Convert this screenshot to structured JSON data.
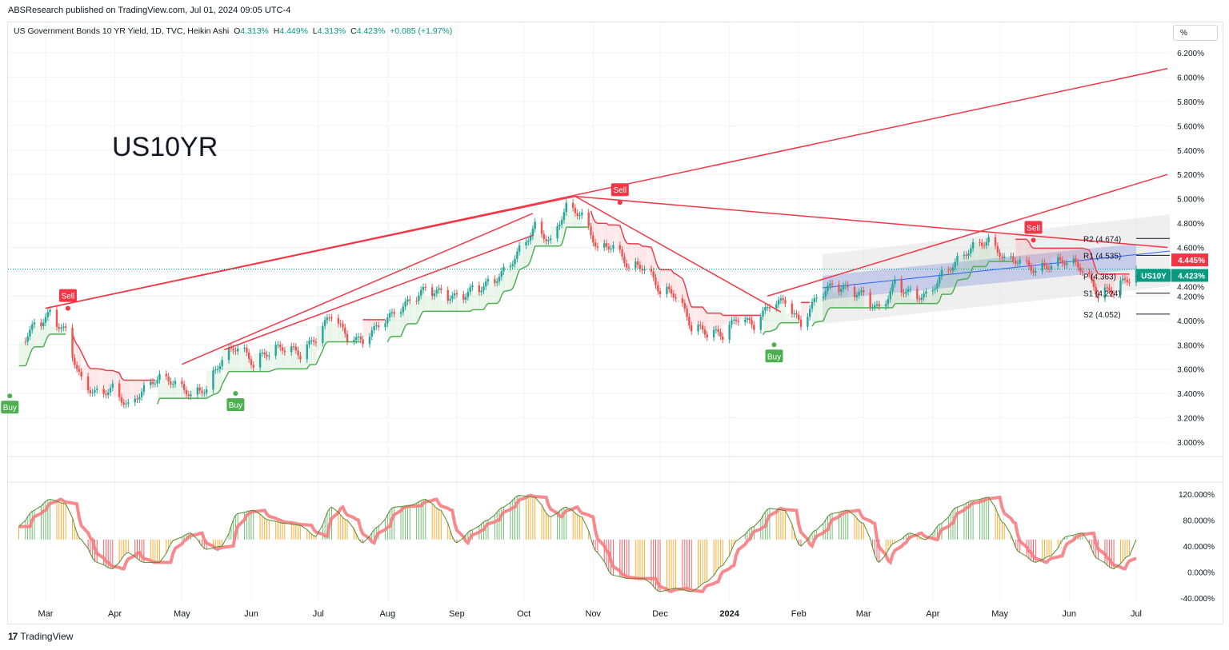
{
  "header": {
    "published": "ABSResearch published on TradingView.com, Jul 01, 2024 09:05 UTC-4"
  },
  "legend": {
    "symbol": "US Government Bonds 10 YR Yield, 1D, TVC, Heikin Ashi",
    "o_label": "O",
    "o": "4.313%",
    "h_label": "H",
    "h": "4.449%",
    "l_label": "L",
    "l": "4.313%",
    "c_label": "C",
    "c": "4.423%",
    "change": "+0.085 (+1.97%)"
  },
  "watermark_symbol": "US10YR",
  "scale_button": "%",
  "footer": {
    "brand": "TradingView",
    "logo": "17"
  },
  "colors": {
    "up": "#26a69a",
    "down": "#ef5350",
    "trendline": "#f23645",
    "supertrend_up": "#4caf50",
    "supertrend_down": "#f23645",
    "price_tag": "#089981",
    "prev_tag": "#f23645"
  },
  "chart_data": [
    {
      "type": "candlestick",
      "style": "Heikin Ashi",
      "ylim": [
        2.9,
        6.3
      ],
      "y_ticks": [
        "6.200%",
        "6.000%",
        "5.800%",
        "5.600%",
        "5.400%",
        "5.200%",
        "5.000%",
        "4.800%",
        "4.600%",
        "4.400%",
        "4.200%",
        "4.000%",
        "3.800%",
        "3.600%",
        "3.400%",
        "3.200%",
        "3.000%"
      ],
      "x_ticks": [
        {
          "label": "Mar",
          "date": "2023-03-01"
        },
        {
          "label": "Apr",
          "date": "2023-04-01"
        },
        {
          "label": "May",
          "date": "2023-05-01"
        },
        {
          "label": "Jun",
          "date": "2023-06-01"
        },
        {
          "label": "Jul",
          "date": "2023-07-01"
        },
        {
          "label": "Aug",
          "date": "2023-08-01"
        },
        {
          "label": "Sep",
          "date": "2023-09-01"
        },
        {
          "label": "Oct",
          "date": "2023-10-01"
        },
        {
          "label": "Nov",
          "date": "2023-11-01"
        },
        {
          "label": "Dec",
          "date": "2023-12-01"
        },
        {
          "label": "2024",
          "date": "2024-01-01"
        },
        {
          "label": "Feb",
          "date": "2024-02-01"
        },
        {
          "label": "Mar",
          "date": "2024-03-01"
        },
        {
          "label": "Apr",
          "date": "2024-04-01"
        },
        {
          "label": "May",
          "date": "2024-05-01"
        },
        {
          "label": "Jun",
          "date": "2024-06-01"
        },
        {
          "label": "Jul",
          "date": "2024-07-01"
        }
      ],
      "weekly_close": [
        [
          "2023-02-17",
          3.8
        ],
        [
          "2023-02-24",
          3.95
        ],
        [
          "2023-03-03",
          4.05
        ],
        [
          "2023-03-10",
          3.9
        ],
        [
          "2023-03-17",
          3.5
        ],
        [
          "2023-03-24",
          3.4
        ],
        [
          "2023-03-31",
          3.45
        ],
        [
          "2023-04-07",
          3.3
        ],
        [
          "2023-04-14",
          3.45
        ],
        [
          "2023-04-21",
          3.55
        ],
        [
          "2023-04-28",
          3.5
        ],
        [
          "2023-05-05",
          3.4
        ],
        [
          "2023-05-12",
          3.45
        ],
        [
          "2023-05-19",
          3.7
        ],
        [
          "2023-05-26",
          3.8
        ],
        [
          "2023-06-02",
          3.65
        ],
        [
          "2023-06-09",
          3.75
        ],
        [
          "2023-06-16",
          3.78
        ],
        [
          "2023-06-23",
          3.72
        ],
        [
          "2023-06-30",
          3.85
        ],
        [
          "2023-07-07",
          4.05
        ],
        [
          "2023-07-14",
          3.85
        ],
        [
          "2023-07-21",
          3.82
        ],
        [
          "2023-07-28",
          3.95
        ],
        [
          "2023-08-04",
          4.05
        ],
        [
          "2023-08-11",
          4.15
        ],
        [
          "2023-08-18",
          4.25
        ],
        [
          "2023-08-25",
          4.22
        ],
        [
          "2023-09-01",
          4.18
        ],
        [
          "2023-09-08",
          4.25
        ],
        [
          "2023-09-15",
          4.3
        ],
        [
          "2023-09-22",
          4.4
        ],
        [
          "2023-09-29",
          4.58
        ],
        [
          "2023-10-06",
          4.78
        ],
        [
          "2023-10-13",
          4.65
        ],
        [
          "2023-10-20",
          4.95
        ],
        [
          "2023-10-27",
          4.88
        ],
        [
          "2023-11-03",
          4.6
        ],
        [
          "2023-11-10",
          4.63
        ],
        [
          "2023-11-17",
          4.45
        ],
        [
          "2023-11-24",
          4.45
        ],
        [
          "2023-12-01",
          4.25
        ],
        [
          "2023-12-08",
          4.22
        ],
        [
          "2023-12-15",
          3.95
        ],
        [
          "2023-12-22",
          3.9
        ],
        [
          "2023-12-29",
          3.88
        ],
        [
          "2024-01-05",
          4.02
        ],
        [
          "2024-01-12",
          3.95
        ],
        [
          "2024-01-19",
          4.12
        ],
        [
          "2024-01-26",
          4.15
        ],
        [
          "2024-02-02",
          3.95
        ],
        [
          "2024-02-09",
          4.18
        ],
        [
          "2024-02-16",
          4.28
        ],
        [
          "2024-02-23",
          4.25
        ],
        [
          "2024-03-01",
          4.2
        ],
        [
          "2024-03-08",
          4.08
        ],
        [
          "2024-03-15",
          4.3
        ],
        [
          "2024-03-22",
          4.22
        ],
        [
          "2024-03-29",
          4.2
        ],
        [
          "2024-04-05",
          4.38
        ],
        [
          "2024-04-12",
          4.5
        ],
        [
          "2024-04-19",
          4.62
        ],
        [
          "2024-04-26",
          4.67
        ],
        [
          "2024-05-03",
          4.52
        ],
        [
          "2024-05-10",
          4.5
        ],
        [
          "2024-05-17",
          4.42
        ],
        [
          "2024-05-24",
          4.47
        ],
        [
          "2024-05-31",
          4.5
        ],
        [
          "2024-06-07",
          4.43
        ],
        [
          "2024-06-14",
          4.22
        ],
        [
          "2024-06-21",
          4.25
        ],
        [
          "2024-06-28",
          4.35
        ],
        [
          "2024-07-01",
          4.42
        ]
      ],
      "trendlines": [
        [
          [
            "2023-03-01",
            4.1
          ],
          [
            "2024-07-15",
            6.07
          ]
        ],
        [
          [
            "2023-03-01",
            4.1
          ],
          [
            "2023-10-24",
            5.02
          ]
        ],
        [
          [
            "2023-05-01",
            3.64
          ],
          [
            "2023-10-05",
            4.88
          ]
        ],
        [
          [
            "2023-05-20",
            3.76
          ],
          [
            "2023-10-05",
            4.7
          ]
        ],
        [
          [
            "2023-10-24",
            5.02
          ],
          [
            "2024-07-15",
            4.6
          ]
        ],
        [
          [
            "2023-10-24",
            5.02
          ],
          [
            "2024-01-24",
            4.07
          ]
        ],
        [
          [
            "2024-01-18",
            4.2
          ],
          [
            "2024-07-15",
            5.2
          ]
        ]
      ],
      "signals": [
        {
          "label": "Buy",
          "date": "2023-02-13",
          "value": 3.38
        },
        {
          "label": "Sell",
          "date": "2023-03-11",
          "value": 4.1
        },
        {
          "label": "Buy",
          "date": "2023-05-25",
          "value": 3.4
        },
        {
          "label": "Sell",
          "date": "2023-11-13",
          "value": 4.97
        },
        {
          "label": "Buy",
          "date": "2024-01-21",
          "value": 3.8
        },
        {
          "label": "Sell",
          "date": "2024-05-16",
          "value": 4.66
        }
      ],
      "pivots": [
        {
          "label": "R2 (4.674)",
          "value": 4.674
        },
        {
          "label": "R1 (4.535)",
          "value": 4.535
        },
        {
          "label": "P (4.363)",
          "value": 4.363
        },
        {
          "label": "S1 (4.224)",
          "value": 4.224
        },
        {
          "label": "S2 (4.052)",
          "value": 4.052
        }
      ],
      "price_tags": [
        {
          "label": "",
          "value": 4.445,
          "text": "4.445%"
        },
        {
          "label": "US10Y",
          "value": 4.423,
          "text": "4.423%"
        }
      ]
    },
    {
      "type": "histogram",
      "ylim": [
        -45,
        125
      ],
      "baseline": 50,
      "y_ticks": [
        "120.000%",
        "80.000%",
        "40.000%",
        "0.000%",
        "-40.000%"
      ],
      "weekly_value": [
        [
          "2023-02-17",
          70
        ],
        [
          "2023-02-24",
          95
        ],
        [
          "2023-03-03",
          112
        ],
        [
          "2023-03-10",
          105
        ],
        [
          "2023-03-17",
          50
        ],
        [
          "2023-03-24",
          15
        ],
        [
          "2023-03-31",
          5
        ],
        [
          "2023-04-07",
          30
        ],
        [
          "2023-04-14",
          15
        ],
        [
          "2023-04-21",
          15
        ],
        [
          "2023-04-28",
          50
        ],
        [
          "2023-05-05",
          60
        ],
        [
          "2023-05-12",
          35
        ],
        [
          "2023-05-19",
          40
        ],
        [
          "2023-05-26",
          90
        ],
        [
          "2023-06-02",
          95
        ],
        [
          "2023-06-09",
          80
        ],
        [
          "2023-06-16",
          75
        ],
        [
          "2023-06-23",
          72
        ],
        [
          "2023-06-30",
          55
        ],
        [
          "2023-07-07",
          100
        ],
        [
          "2023-07-14",
          80
        ],
        [
          "2023-07-21",
          45
        ],
        [
          "2023-07-28",
          70
        ],
        [
          "2023-08-04",
          100
        ],
        [
          "2023-08-11",
          102
        ],
        [
          "2023-08-18",
          112
        ],
        [
          "2023-08-25",
          95
        ],
        [
          "2023-09-01",
          45
        ],
        [
          "2023-09-08",
          65
        ],
        [
          "2023-09-15",
          80
        ],
        [
          "2023-09-22",
          100
        ],
        [
          "2023-09-29",
          118
        ],
        [
          "2023-10-06",
          115
        ],
        [
          "2023-10-13",
          85
        ],
        [
          "2023-10-20",
          100
        ],
        [
          "2023-10-27",
          85
        ],
        [
          "2023-11-03",
          30
        ],
        [
          "2023-11-10",
          -5
        ],
        [
          "2023-11-17",
          -10
        ],
        [
          "2023-11-24",
          -10
        ],
        [
          "2023-12-01",
          -30
        ],
        [
          "2023-12-08",
          -25
        ],
        [
          "2023-12-15",
          -30
        ],
        [
          "2023-12-22",
          -15
        ],
        [
          "2023-12-29",
          10
        ],
        [
          "2024-01-05",
          50
        ],
        [
          "2024-01-12",
          70
        ],
        [
          "2024-01-19",
          98
        ],
        [
          "2024-01-26",
          95
        ],
        [
          "2024-02-02",
          40
        ],
        [
          "2024-02-09",
          65
        ],
        [
          "2024-02-16",
          90
        ],
        [
          "2024-02-23",
          95
        ],
        [
          "2024-03-01",
          75
        ],
        [
          "2024-03-08",
          15
        ],
        [
          "2024-03-15",
          45
        ],
        [
          "2024-03-22",
          60
        ],
        [
          "2024-03-29",
          50
        ],
        [
          "2024-04-05",
          75
        ],
        [
          "2024-04-12",
          100
        ],
        [
          "2024-04-19",
          110
        ],
        [
          "2024-04-26",
          115
        ],
        [
          "2024-05-03",
          75
        ],
        [
          "2024-05-10",
          30
        ],
        [
          "2024-05-17",
          15
        ],
        [
          "2024-05-24",
          25
        ],
        [
          "2024-05-31",
          55
        ],
        [
          "2024-06-07",
          60
        ],
        [
          "2024-06-14",
          20
        ],
        [
          "2024-06-21",
          5
        ],
        [
          "2024-06-28",
          25
        ],
        [
          "2024-07-01",
          50
        ]
      ]
    }
  ]
}
